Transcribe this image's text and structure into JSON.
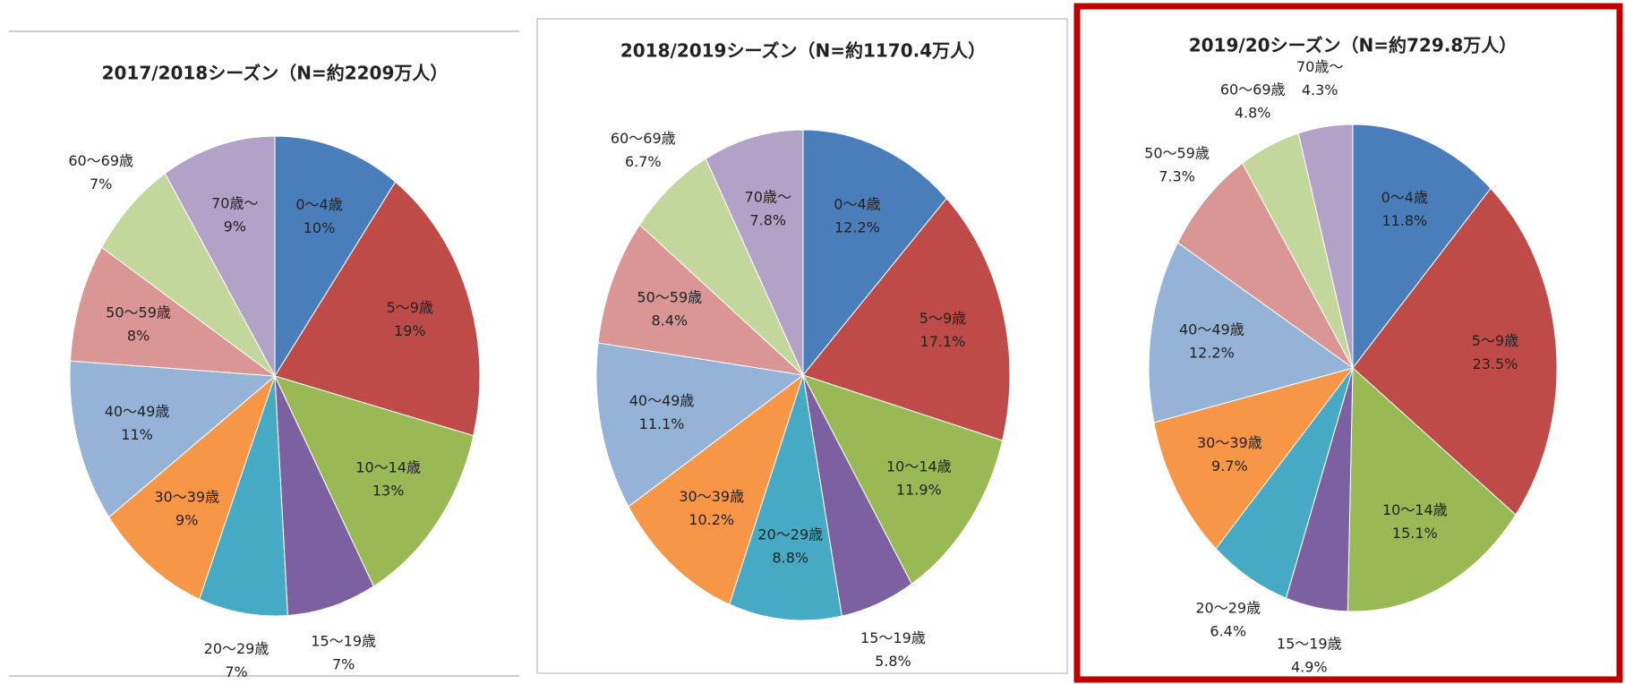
{
  "chart_data": [
    {
      "type": "pie",
      "title": "2017/2018シーズン（N=約2209万人）",
      "categories": [
        "0〜4歳",
        "5〜9歳",
        "10〜14歳",
        "15〜19歳",
        "20〜29歳",
        "30〜39歳",
        "40〜49歳",
        "50〜59歳",
        "60〜69歳",
        "70歳〜"
      ],
      "values": [
        10,
        19,
        13,
        7,
        7,
        9,
        11,
        8,
        7,
        9
      ],
      "value_labels": [
        "10%",
        "19%",
        "13%",
        "7%",
        "7%",
        "9%",
        "11%",
        "8%",
        "7%",
        "9%"
      ],
      "colors": [
        "#4a7ebb",
        "#be4b48",
        "#98b954",
        "#7d60a0",
        "#46aac5",
        "#f79646",
        "#95b3d7",
        "#d99694",
        "#c3d69b",
        "#b3a2c7"
      ]
    },
    {
      "type": "pie",
      "title": "2018/2019シーズン（N=約1170.4万人）",
      "categories": [
        "0〜4歳",
        "5〜9歳",
        "10〜14歳",
        "15〜19歳",
        "20〜29歳",
        "30〜39歳",
        "40〜49歳",
        "50〜59歳",
        "60〜69歳",
        "70歳〜"
      ],
      "values": [
        12.2,
        17.1,
        11.9,
        5.8,
        8.8,
        10.2,
        11.1,
        8.4,
        6.7,
        7.8
      ],
      "value_labels": [
        "12.2%",
        "17.1%",
        "11.9%",
        "5.8%",
        "8.8%",
        "10.2%",
        "11.1%",
        "8.4%",
        "6.7%",
        "7.8%"
      ],
      "colors": [
        "#4a7ebb",
        "#be4b48",
        "#98b954",
        "#7d60a0",
        "#46aac5",
        "#f79646",
        "#95b3d7",
        "#d99694",
        "#c3d69b",
        "#b3a2c7"
      ]
    },
    {
      "type": "pie",
      "title": "2019/20シーズン（N=約729.8万人）",
      "categories": [
        "0〜4歳",
        "5〜9歳",
        "10〜14歳",
        "15〜19歳",
        "20〜29歳",
        "30〜39歳",
        "40〜49歳",
        "50〜59歳",
        "60〜69歳",
        "70歳〜"
      ],
      "values": [
        11.8,
        23.5,
        15.1,
        4.9,
        6.4,
        9.7,
        12.2,
        7.3,
        4.8,
        4.3
      ],
      "value_labels": [
        "11.8%",
        "23.5%",
        "15.1%",
        "4.9%",
        "6.4%",
        "9.7%",
        "12.2%",
        "7.3%",
        "4.8%",
        "4.3%"
      ],
      "colors": [
        "#4a7ebb",
        "#be4b48",
        "#98b954",
        "#7d60a0",
        "#46aac5",
        "#f79646",
        "#95b3d7",
        "#d99694",
        "#c3d69b",
        "#b3a2c7"
      ]
    }
  ]
}
